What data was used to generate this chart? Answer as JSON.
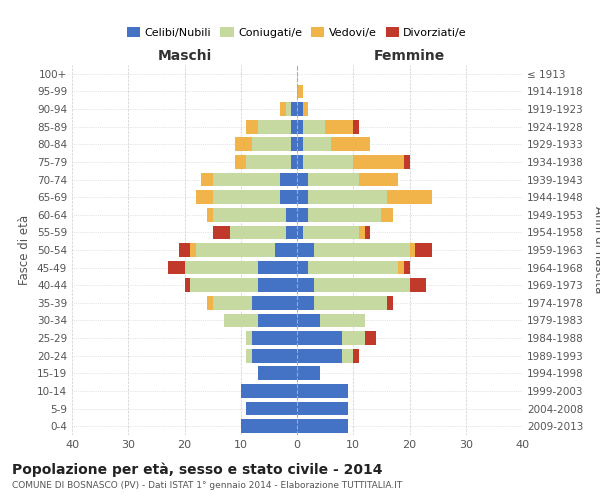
{
  "age_groups": [
    "0-4",
    "5-9",
    "10-14",
    "15-19",
    "20-24",
    "25-29",
    "30-34",
    "35-39",
    "40-44",
    "45-49",
    "50-54",
    "55-59",
    "60-64",
    "65-69",
    "70-74",
    "75-79",
    "80-84",
    "85-89",
    "90-94",
    "95-99",
    "100+"
  ],
  "birth_years": [
    "2009-2013",
    "2004-2008",
    "1999-2003",
    "1994-1998",
    "1989-1993",
    "1984-1988",
    "1979-1983",
    "1974-1978",
    "1969-1973",
    "1964-1968",
    "1959-1963",
    "1954-1958",
    "1949-1953",
    "1944-1948",
    "1939-1943",
    "1934-1938",
    "1929-1933",
    "1924-1928",
    "1919-1923",
    "1914-1918",
    "≤ 1913"
  ],
  "male": {
    "celibi": [
      10,
      9,
      10,
      7,
      8,
      8,
      7,
      8,
      7,
      7,
      4,
      2,
      2,
      3,
      3,
      1,
      1,
      1,
      1,
      0,
      0
    ],
    "coniugati": [
      0,
      0,
      0,
      0,
      1,
      1,
      6,
      7,
      12,
      13,
      14,
      10,
      13,
      12,
      12,
      8,
      7,
      6,
      1,
      0,
      0
    ],
    "vedovi": [
      0,
      0,
      0,
      0,
      0,
      0,
      0,
      1,
      0,
      0,
      1,
      0,
      1,
      3,
      2,
      2,
      3,
      2,
      1,
      0,
      0
    ],
    "divorziati": [
      0,
      0,
      0,
      0,
      0,
      0,
      0,
      0,
      1,
      3,
      2,
      3,
      0,
      0,
      0,
      0,
      0,
      0,
      0,
      0,
      0
    ]
  },
  "female": {
    "nubili": [
      9,
      9,
      9,
      4,
      8,
      8,
      4,
      3,
      3,
      2,
      3,
      1,
      2,
      2,
      2,
      1,
      1,
      1,
      1,
      0,
      0
    ],
    "coniugate": [
      0,
      0,
      0,
      0,
      2,
      4,
      8,
      13,
      17,
      16,
      17,
      10,
      13,
      14,
      9,
      9,
      5,
      4,
      0,
      0,
      0
    ],
    "vedove": [
      0,
      0,
      0,
      0,
      0,
      0,
      0,
      0,
      0,
      1,
      1,
      1,
      2,
      8,
      7,
      9,
      7,
      5,
      1,
      1,
      0
    ],
    "divorziate": [
      0,
      0,
      0,
      0,
      1,
      2,
      0,
      1,
      3,
      1,
      3,
      1,
      0,
      0,
      0,
      1,
      0,
      1,
      0,
      0,
      0
    ]
  },
  "colors": {
    "celibi": "#4472c4",
    "coniugati": "#c5d9a0",
    "vedovi": "#f0b44a",
    "divorziati": "#c0392b"
  },
  "title": "Popolazione per età, sesso e stato civile - 2014",
  "subtitle": "COMUNE DI BOSNASCO (PV) - Dati ISTAT 1° gennaio 2014 - Elaborazione TUTTITALIA.IT",
  "xlabel_left": "Maschi",
  "xlabel_right": "Femmine",
  "ylabel_left": "Fasce di età",
  "ylabel_right": "Anni di nascita",
  "xlim": 40,
  "bg_color": "#ffffff",
  "grid_color": "#cccccc"
}
